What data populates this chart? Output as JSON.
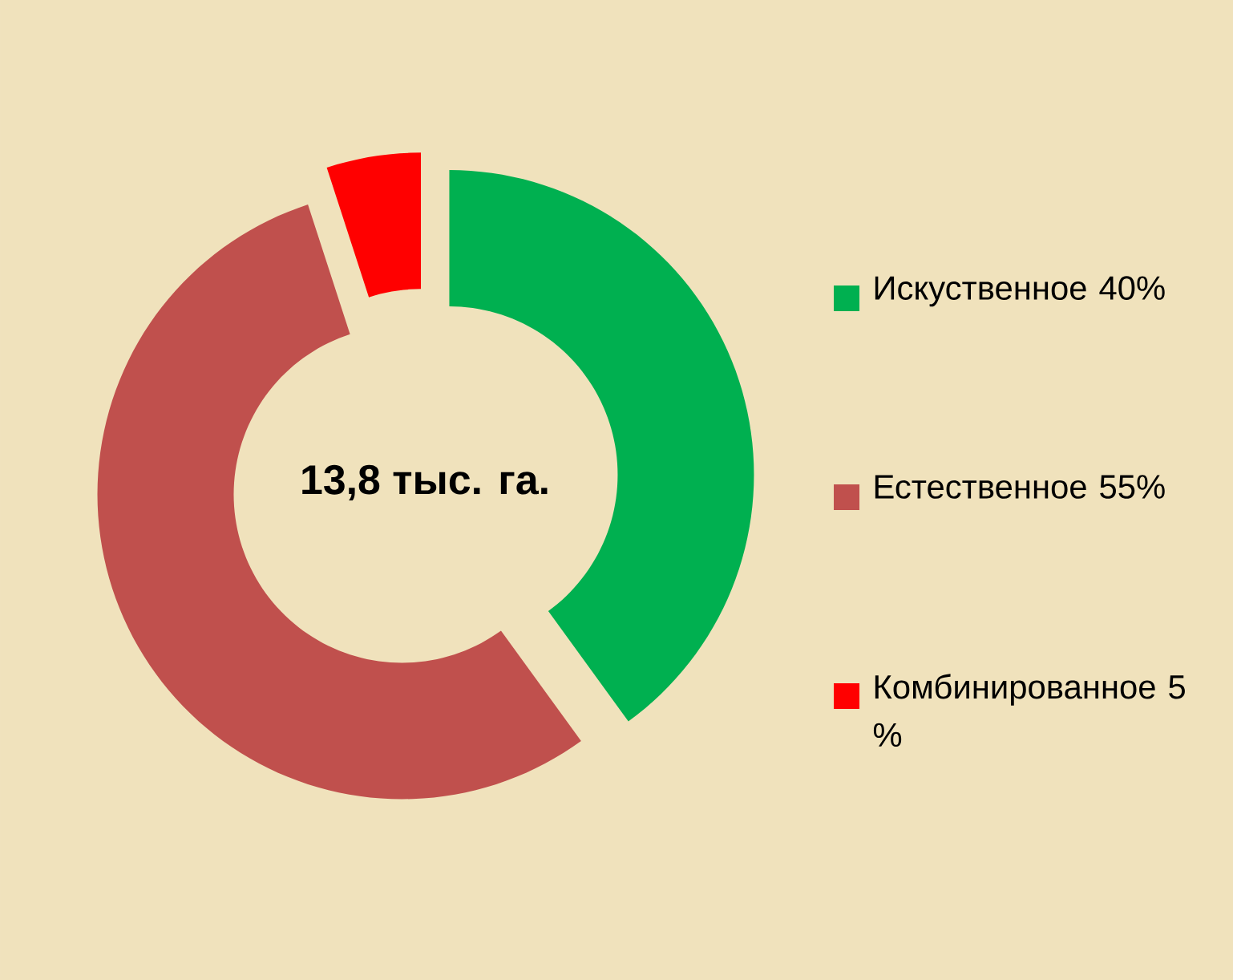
{
  "chart_data": {
    "type": "donut",
    "categories": [
      "Искуственное 40%",
      "Естественное 55%",
      "Комбинированное 5 %"
    ],
    "values": [
      40,
      55,
      5
    ],
    "colors": [
      "#00b050",
      "#c0504d",
      "#ff0000"
    ],
    "annotations": [
      "13,8 тыс. га."
    ],
    "legend": "right"
  }
}
